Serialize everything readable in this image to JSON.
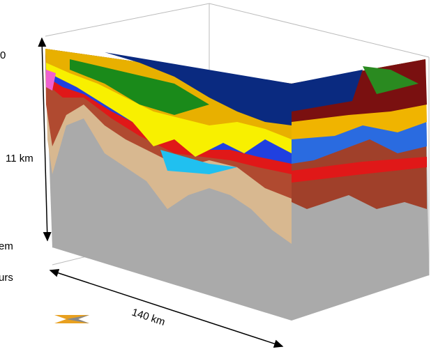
{
  "labels": {
    "top_left": "0",
    "depth": "11 km",
    "side_a": "em",
    "side_b": "urs",
    "length": "140 km"
  }
}
